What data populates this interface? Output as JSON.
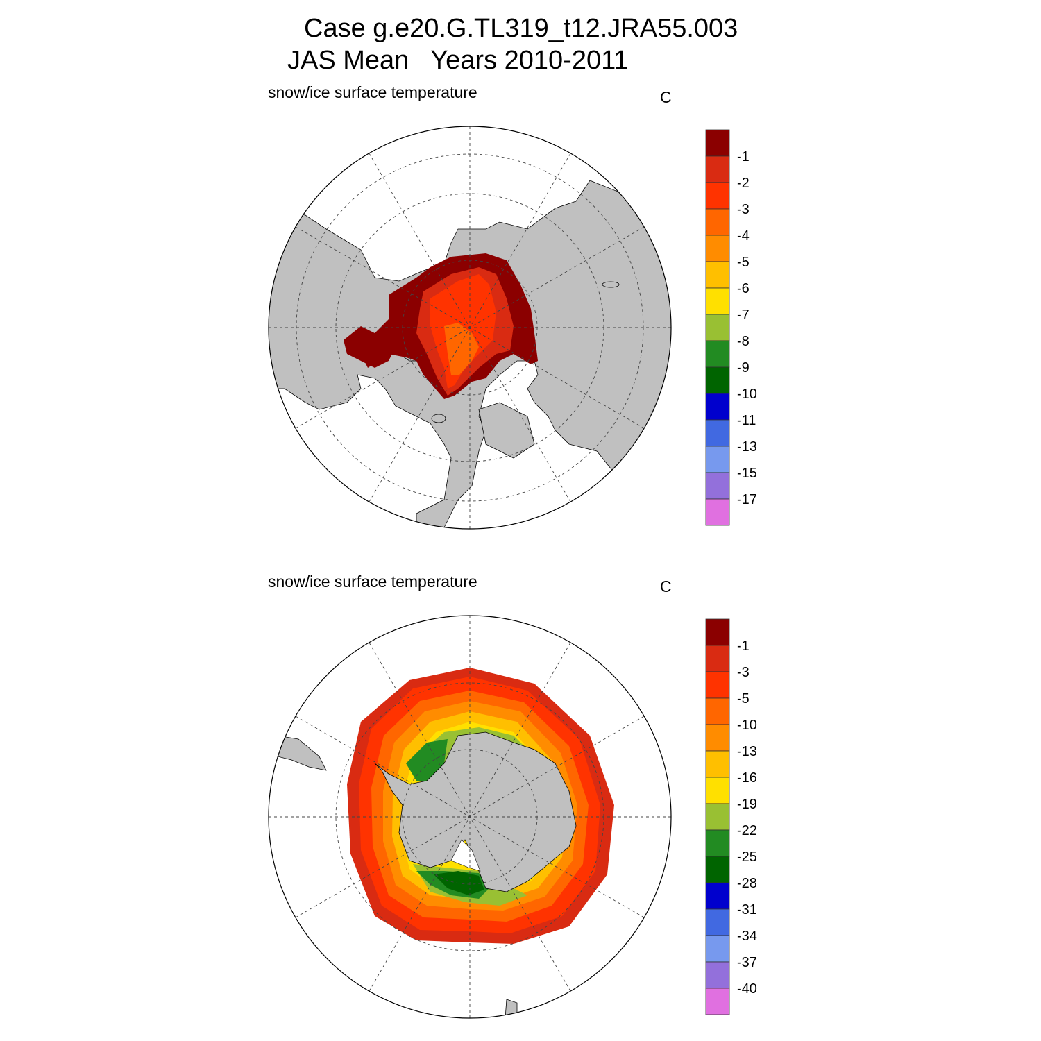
{
  "title_line1": "Case g.e20.G.TL319_t12.JRA55.003",
  "title_line2": "JAS Mean   Years 2010-2011",
  "palette": [
    "#8b0000",
    "#d92b12",
    "#ff3300",
    "#ff6600",
    "#ff8c00",
    "#ffbf00",
    "#ffe000",
    "#99c033",
    "#228b22",
    "#006400",
    "#0000cd",
    "#4169e1",
    "#7799ee",
    "#9370db",
    "#e070e0"
  ],
  "colors": {
    "land": "#c0c0c0",
    "ocean": "#ffffff",
    "grid": "#444444",
    "outline": "#000000"
  },
  "panels": [
    {
      "id": "north",
      "title": "snow/ice surface temperature",
      "units": "C",
      "hemisphere": "Arctic",
      "colorbar_labels": [
        "-1",
        "-2",
        "-3",
        "-4",
        "-5",
        "-6",
        "-7",
        "-8",
        "-9",
        "-10",
        "-11",
        "-13",
        "-15",
        "-17"
      ]
    },
    {
      "id": "south",
      "title": "snow/ice surface temperature",
      "units": "C",
      "hemisphere": "Antarctic",
      "colorbar_labels": [
        "-1",
        "-3",
        "-5",
        "-10",
        "-13",
        "-16",
        "-19",
        "-22",
        "-25",
        "-28",
        "-31",
        "-34",
        "-37",
        "-40"
      ]
    }
  ]
}
